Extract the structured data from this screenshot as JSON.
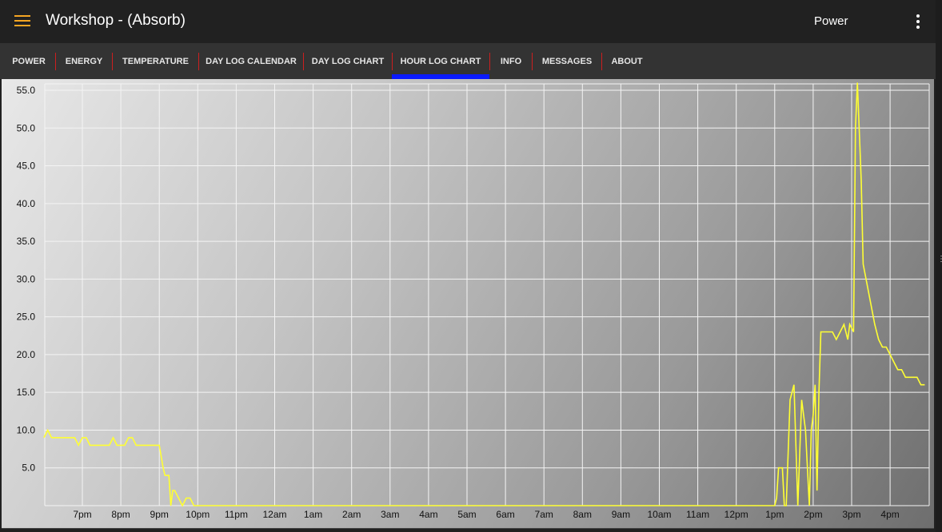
{
  "header": {
    "title": "Workshop - (Absorb)",
    "power_label": "Power",
    "menu_icon": "hamburger-menu-icon",
    "more_icon": "more-vertical-icon"
  },
  "tabs": [
    {
      "label": "POWER",
      "active": false
    },
    {
      "label": "ENERGY",
      "active": false
    },
    {
      "label": "TEMPERATURE",
      "active": false
    },
    {
      "label": "DAY LOG CALENDAR",
      "active": false
    },
    {
      "label": "DAY LOG CHART",
      "active": false
    },
    {
      "label": "HOUR LOG CHART",
      "active": true
    },
    {
      "label": "INFO",
      "active": false
    },
    {
      "label": "MESSAGES",
      "active": false
    },
    {
      "label": "ABOUT",
      "active": false
    }
  ],
  "colors": {
    "accent_menu": "#f5a623",
    "tab_separator": "#cc1f1f",
    "active_tab_underline": "#0a1aff",
    "series_line": "#ffff33"
  },
  "chart_data": {
    "type": "line",
    "ylim": [
      0,
      55
    ],
    "y_ticks": [
      "5.0",
      "10.0",
      "15.0",
      "20.0",
      "25.0",
      "30.0",
      "35.0",
      "40.0",
      "45.0",
      "50.0",
      "55.0"
    ],
    "x_ticks": [
      "7pm",
      "8pm",
      "9pm",
      "10pm",
      "11pm",
      "12am",
      "1am",
      "2am",
      "3am",
      "4am",
      "5am",
      "6am",
      "7am",
      "8am",
      "9am",
      "10am",
      "11am",
      "12pm",
      "1pm",
      "2pm",
      "3pm",
      "4pm"
    ],
    "x_hours_range": [
      18.0,
      40.9
    ],
    "grid": true,
    "series": [
      {
        "x": [
          18.0,
          18.1,
          18.2,
          18.4,
          18.6,
          18.8,
          18.9,
          19.0,
          19.1,
          19.2,
          19.3,
          19.5,
          19.7,
          19.8,
          19.9,
          20.0,
          20.1,
          20.2,
          20.3,
          20.4,
          20.5,
          20.6,
          20.7,
          20.9,
          21.0,
          21.1,
          21.15,
          21.2,
          21.25,
          21.3,
          21.35,
          21.4,
          21.5,
          21.6,
          21.7,
          21.8,
          21.9,
          22.0,
          22.1,
          22.2,
          30.0,
          35.0,
          37.0,
          37.05,
          37.1,
          37.2,
          37.25,
          37.3,
          37.4,
          37.5,
          37.6,
          37.7,
          37.8,
          37.9,
          37.95,
          38.0,
          38.05,
          38.1,
          38.15,
          38.2,
          38.3,
          38.4,
          38.5,
          38.6,
          38.8,
          38.9,
          38.95,
          39.05,
          39.1,
          39.15,
          39.25,
          39.3,
          39.6,
          39.7,
          39.8,
          39.9,
          40.0,
          40.1,
          40.2,
          40.3,
          40.4,
          40.5,
          40.6,
          40.7,
          40.8,
          40.9
        ],
        "y": [
          9,
          10,
          9,
          9,
          9,
          9,
          8,
          9,
          9,
          8,
          8,
          8,
          8,
          9,
          8,
          8,
          8,
          9,
          9,
          8,
          8,
          8,
          8,
          8,
          8,
          5,
          4,
          4,
          4,
          0,
          2,
          2,
          1,
          0,
          1,
          1,
          0,
          0,
          0,
          0,
          0,
          0,
          0,
          1,
          5,
          5,
          0,
          0,
          14,
          16,
          0,
          14,
          10,
          0,
          10,
          12,
          16,
          2,
          15,
          23,
          23,
          23,
          23,
          22,
          24,
          22,
          24,
          23,
          50,
          56,
          43,
          32,
          24,
          22,
          21,
          21,
          20,
          19,
          18,
          18,
          17,
          17,
          17,
          17,
          16,
          16
        ]
      }
    ]
  }
}
